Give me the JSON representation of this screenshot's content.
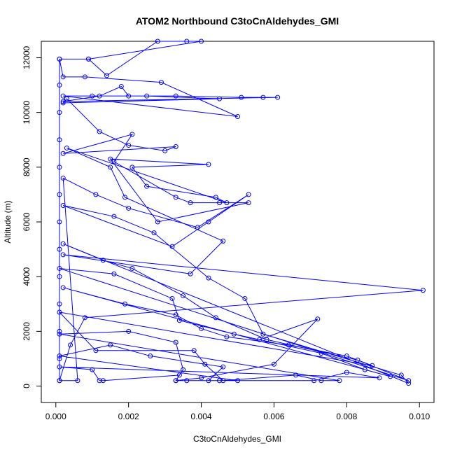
{
  "chart_data": {
    "type": "line",
    "title": "ATOM2 Northbound C3toCnAldehydes_GMI",
    "xlabel": "C3toCnAldehydes_GMI",
    "ylabel": "Altitude (m)",
    "xlim": [
      -0.0004,
      0.0104
    ],
    "ylim": [
      -600,
      12600
    ],
    "x_ticks": [
      0.0,
      0.002,
      0.004,
      0.006,
      0.008,
      0.01
    ],
    "x_tick_labels": [
      "0.000",
      "0.002",
      "0.004",
      "0.006",
      "0.008",
      "0.010"
    ],
    "y_ticks": [
      0,
      2000,
      4000,
      6000,
      8000,
      10000,
      12000
    ],
    "y_tick_labels": [
      "0",
      "2000",
      "4000",
      "6000",
      "8000",
      "10000",
      "12000"
    ],
    "grid": false,
    "marker": "open-circle",
    "series": [
      {
        "color": "#0000ff",
        "points": [
          [
            0.0001,
            200
          ],
          [
            0.0001,
            1000
          ],
          [
            0.0001,
            2000
          ],
          [
            0.0001,
            3000
          ],
          [
            0.0001,
            4000
          ],
          [
            0.0001,
            5000
          ],
          [
            0.0001,
            6000
          ],
          [
            0.0001,
            7000
          ],
          [
            0.0001,
            8000
          ],
          [
            0.0001,
            9000
          ],
          [
            0.0001,
            10000
          ],
          [
            0.0001,
            11000
          ],
          [
            0.0001,
            11950
          ],
          [
            0.0009,
            11950
          ],
          [
            0.0014,
            11350
          ],
          [
            0.0028,
            12600
          ],
          [
            0.0036,
            12600
          ],
          [
            0.004,
            12600
          ],
          [
            0.0009,
            11950
          ],
          [
            0.0001,
            11950
          ],
          [
            0.0002,
            11300
          ],
          [
            0.0008,
            11300
          ],
          [
            0.0029,
            11100
          ],
          [
            0.005,
            9850
          ],
          [
            0.0002,
            10600
          ],
          [
            0.001,
            10600
          ],
          [
            0.0033,
            10600
          ],
          [
            0.0051,
            10550
          ],
          [
            0.0057,
            10550
          ],
          [
            0.0061,
            10550
          ],
          [
            0.0002,
            10400
          ],
          [
            0.0012,
            10600
          ],
          [
            0.0018,
            10950
          ],
          [
            0.002,
            10600
          ],
          [
            0.0025,
            10600
          ],
          [
            0.0045,
            10500
          ],
          [
            0.0002,
            10350
          ],
          [
            0.0003,
            10500
          ],
          [
            0.0012,
            9300
          ],
          [
            0.002,
            8800
          ],
          [
            0.003,
            8600
          ],
          [
            0.0033,
            8750
          ],
          [
            0.0002,
            8500
          ],
          [
            0.0021,
            9200
          ],
          [
            0.0016,
            8200
          ],
          [
            0.0033,
            6900
          ],
          [
            0.0037,
            6700
          ],
          [
            0.0045,
            6700
          ],
          [
            0.0053,
            6700
          ],
          [
            0.0028,
            6000
          ],
          [
            0.0015,
            8300
          ],
          [
            0.0042,
            8100
          ],
          [
            0.0021,
            8000
          ],
          [
            0.0025,
            7300
          ],
          [
            0.0044,
            6900
          ],
          [
            0.0047,
            6700
          ],
          [
            0.0003,
            8700
          ],
          [
            0.0015,
            8000
          ],
          [
            0.0019,
            6900
          ],
          [
            0.0046,
            5300
          ],
          [
            0.0037,
            4100
          ],
          [
            0.0002,
            4800
          ],
          [
            0.0101,
            3500
          ],
          [
            0.0008,
            2500
          ],
          [
            0.0004,
            1500
          ],
          [
            0.0001,
            200
          ],
          [
            0.0006,
            200
          ],
          [
            0.0002,
            7600
          ],
          [
            0.0011,
            7000
          ],
          [
            0.002,
            6500
          ],
          [
            0.0039,
            5800
          ],
          [
            0.0053,
            7000
          ],
          [
            0.0042,
            6000
          ],
          [
            0.0032,
            5100
          ],
          [
            0.0002,
            6600
          ],
          [
            0.0016,
            6200
          ],
          [
            0.0027,
            5600
          ],
          [
            0.0042,
            3950
          ],
          [
            0.0052,
            3200
          ],
          [
            0.0057,
            1900
          ],
          [
            0.0095,
            400
          ],
          [
            0.0097,
            100
          ],
          [
            0.0002,
            5200
          ],
          [
            0.0013,
            4600
          ],
          [
            0.0021,
            4300
          ],
          [
            0.0035,
            3300
          ],
          [
            0.0044,
            2500
          ],
          [
            0.0058,
            1700
          ],
          [
            0.0083,
            950
          ],
          [
            0.0097,
            200
          ],
          [
            0.0001,
            4300
          ],
          [
            0.0016,
            4100
          ],
          [
            0.0032,
            3200
          ],
          [
            0.0034,
            2400
          ],
          [
            0.0049,
            1900
          ],
          [
            0.0073,
            1200
          ],
          [
            0.0085,
            600
          ],
          [
            0.0092,
            350
          ],
          [
            0.0002,
            3600
          ],
          [
            0.0019,
            3000
          ],
          [
            0.0033,
            2600
          ],
          [
            0.004,
            2100
          ],
          [
            0.0047,
            1800
          ],
          [
            0.0064,
            1500
          ],
          [
            0.008,
            1100
          ],
          [
            0.0087,
            750
          ],
          [
            0.0001,
            2700
          ],
          [
            0.0011,
            1300
          ],
          [
            0.0038,
            1300
          ],
          [
            0.0041,
            800
          ],
          [
            0.0046,
            200
          ],
          [
            0.0066,
            400
          ],
          [
            0.0073,
            200
          ],
          [
            0.0078,
            200
          ],
          [
            0.0001,
            1900
          ],
          [
            0.002,
            2000
          ],
          [
            0.0033,
            1600
          ],
          [
            0.0035,
            600
          ],
          [
            0.0033,
            200
          ],
          [
            0.0036,
            200
          ],
          [
            0.005,
            200
          ],
          [
            0.0001,
            1100
          ],
          [
            0.0015,
            1500
          ],
          [
            0.0026,
            1100
          ],
          [
            0.0046,
            700
          ],
          [
            0.0042,
            200
          ],
          [
            0.0045,
            200
          ],
          [
            0.0071,
            200
          ],
          [
            0.008,
            500
          ],
          [
            0.0089,
            300
          ],
          [
            0.0001,
            700
          ],
          [
            0.001,
            600
          ],
          [
            0.0012,
            200
          ],
          [
            0.0013,
            200
          ],
          [
            0.0034,
            400
          ],
          [
            0.0033,
            200
          ],
          [
            0.004,
            300
          ],
          [
            0.006,
            800
          ],
          [
            0.0072,
            2450
          ],
          [
            0.0056,
            1700
          ]
        ]
      }
    ]
  }
}
